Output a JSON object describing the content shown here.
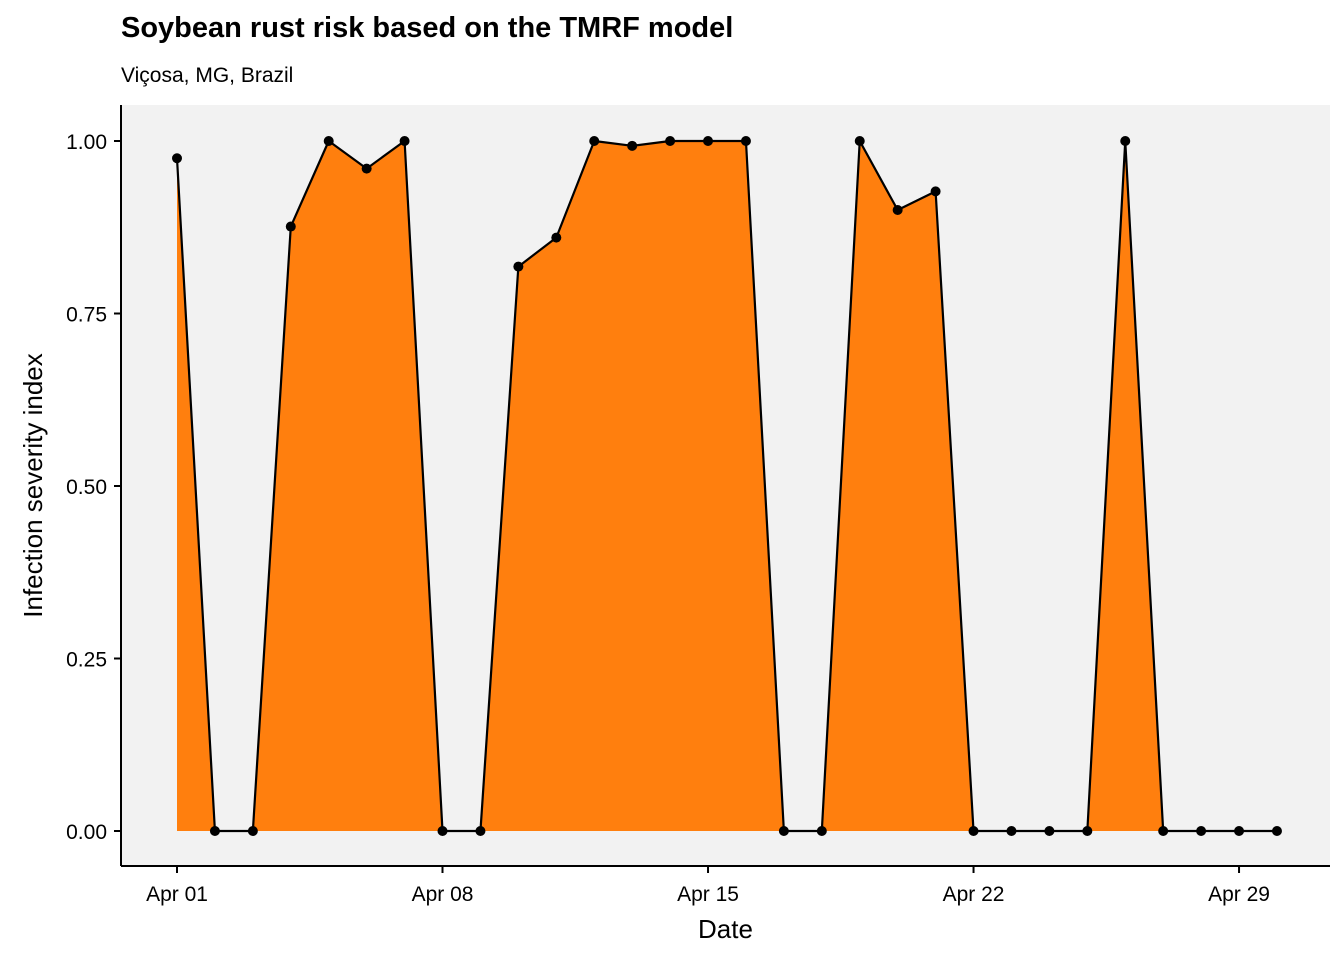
{
  "chart_data": {
    "type": "area",
    "title": "Soybean rust risk based on the TMRF model",
    "subtitle": "Viçosa, MG, Brazil",
    "xlabel": "Date",
    "ylabel": "Infection severity index",
    "x_axis_type": "date",
    "x": [
      "2024-04-01",
      "2024-04-02",
      "2024-04-03",
      "2024-04-04",
      "2024-04-05",
      "2024-04-06",
      "2024-04-07",
      "2024-04-08",
      "2024-04-09",
      "2024-04-10",
      "2024-04-11",
      "2024-04-12",
      "2024-04-13",
      "2024-04-14",
      "2024-04-15",
      "2024-04-16",
      "2024-04-17",
      "2024-04-18",
      "2024-04-19",
      "2024-04-20",
      "2024-04-21",
      "2024-04-22",
      "2024-04-23",
      "2024-04-24",
      "2024-04-25",
      "2024-04-26",
      "2024-04-27",
      "2024-04-28",
      "2024-04-29",
      "2024-04-30"
    ],
    "values": [
      0.975,
      0,
      0,
      0.876,
      1.0,
      0.96,
      1.0,
      0,
      0,
      0.818,
      0.86,
      1.0,
      0.993,
      1.0,
      1.0,
      1.0,
      0,
      0,
      1.0,
      0.9,
      0.927,
      0,
      0,
      0,
      0,
      1.0,
      0,
      0,
      0,
      0
    ],
    "x_ticks": [
      "2024-04-01",
      "2024-04-08",
      "2024-04-15",
      "2024-04-22",
      "2024-04-29"
    ],
    "x_tick_labels": [
      "Apr 01",
      "Apr 08",
      "Apr 15",
      "Apr 22",
      "Apr 29"
    ],
    "ylim": [
      -0.05,
      1.05
    ],
    "y_ticks": [
      0,
      0.25,
      0.5,
      0.75,
      1.0
    ],
    "y_tick_labels": [
      "0.00",
      "0.25",
      "0.50",
      "0.75",
      "1.00"
    ],
    "grid": false,
    "legend": "none",
    "colors": {
      "fill": "#ff7f0e",
      "line": "#000000",
      "points": "#000000",
      "panel_background": "#f2f2f2"
    }
  }
}
